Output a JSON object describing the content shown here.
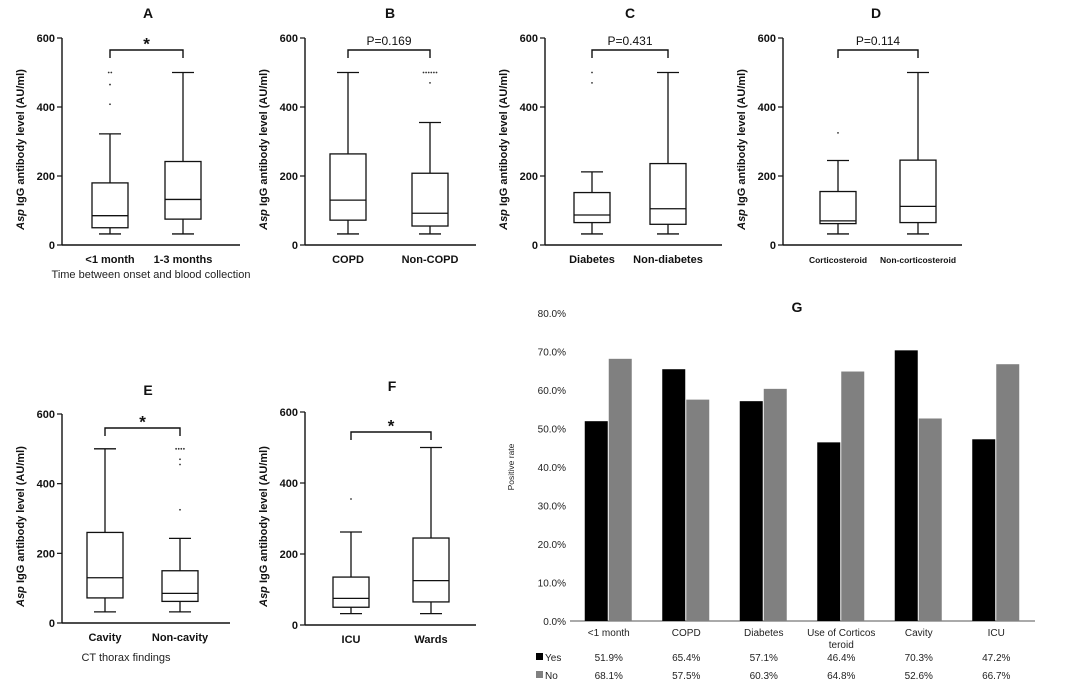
{
  "chart_data": [
    {
      "type": "boxplot",
      "panel": "A",
      "title": "A",
      "ylabel": "Asp IgG antibody level (AU/ml)",
      "xlabel": "Time between onset and blood collection",
      "ylim": [
        0,
        600
      ],
      "yticks": [
        "0",
        "200",
        "400",
        "600"
      ],
      "categories": [
        "<1 month",
        "1-3 months"
      ],
      "boxes": [
        {
          "name": "<1 month",
          "min": 32,
          "q1": 50,
          "median": 85,
          "q3": 180,
          "max": 322,
          "outliers": [
            408,
            465,
            500,
            500
          ]
        },
        {
          "name": "1-3 months",
          "min": 32,
          "q1": 75,
          "median": 132,
          "q3": 242,
          "max": 500,
          "outliers": []
        }
      ],
      "comparison": "*"
    },
    {
      "type": "boxplot",
      "panel": "B",
      "title": "B",
      "ylabel": "Asp IgG antibody level (AU/ml)",
      "xlabel": "",
      "ylim": [
        0,
        600
      ],
      "yticks": [
        "0",
        "200",
        "400",
        "600"
      ],
      "categories": [
        "COPD",
        "Non-COPD"
      ],
      "boxes": [
        {
          "name": "COPD",
          "min": 32,
          "q1": 72,
          "median": 130,
          "q3": 264,
          "max": 500,
          "outliers": []
        },
        {
          "name": "Non-COPD",
          "min": 32,
          "q1": 55,
          "median": 92,
          "q3": 208,
          "max": 355,
          "outliers": [
            470,
            500,
            500,
            500,
            500,
            500,
            500
          ]
        }
      ],
      "comparison": "P=0.169"
    },
    {
      "type": "boxplot",
      "panel": "C",
      "title": "C",
      "ylabel": "Asp IgG antibody level (AU/ml)",
      "xlabel": "",
      "ylim": [
        0,
        600
      ],
      "yticks": [
        "0",
        "200",
        "400",
        "600"
      ],
      "categories": [
        "Diabetes",
        "Non-diabetes"
      ],
      "boxes": [
        {
          "name": "Diabetes",
          "min": 32,
          "q1": 65,
          "median": 87,
          "q3": 152,
          "max": 212,
          "outliers": [
            470,
            500
          ]
        },
        {
          "name": "Non-diabetes",
          "min": 32,
          "q1": 60,
          "median": 105,
          "q3": 236,
          "max": 500,
          "outliers": []
        }
      ],
      "comparison": "P=0.431"
    },
    {
      "type": "boxplot",
      "panel": "D",
      "title": "D",
      "ylabel": "Asp IgG antibody level (AU/ml)",
      "xlabel": "",
      "ylim": [
        0,
        600
      ],
      "yticks": [
        "0",
        "200",
        "400",
        "600"
      ],
      "categories": [
        "Corticosteroid",
        "Non-corticosteroid"
      ],
      "boxes": [
        {
          "name": "Corticosteroid",
          "min": 32,
          "q1": 62,
          "median": 70,
          "q3": 155,
          "max": 245,
          "outliers": [
            325
          ]
        },
        {
          "name": "Non-corticosteroid",
          "min": 32,
          "q1": 65,
          "median": 112,
          "q3": 246,
          "max": 500,
          "outliers": []
        }
      ],
      "comparison": "P=0.114"
    },
    {
      "type": "boxplot",
      "panel": "E",
      "title": "E",
      "ylabel": "Asp IgG antibody level (AU/ml)",
      "xlabel": "CT thorax findings",
      "ylim": [
        0,
        600
      ],
      "yticks": [
        "0",
        "200",
        "400",
        "600"
      ],
      "categories": [
        "Cavity",
        "Non-cavity"
      ],
      "boxes": [
        {
          "name": "Cavity",
          "min": 32,
          "q1": 72,
          "median": 130,
          "q3": 260,
          "max": 500,
          "outliers": []
        },
        {
          "name": "Non-cavity",
          "min": 32,
          "q1": 62,
          "median": 85,
          "q3": 150,
          "max": 243,
          "outliers": [
            325,
            455,
            470,
            500,
            500,
            500,
            500
          ]
        }
      ],
      "comparison": "*"
    },
    {
      "type": "boxplot",
      "panel": "F",
      "title": "F",
      "ylabel": "Asp IgG antibody level (AU/ml)",
      "xlabel": "",
      "ylim": [
        0,
        600
      ],
      "yticks": [
        "0",
        "200",
        "400",
        "600"
      ],
      "categories": [
        "ICU",
        "Wards"
      ],
      "boxes": [
        {
          "name": "ICU",
          "min": 32,
          "q1": 50,
          "median": 75,
          "q3": 135,
          "max": 262,
          "outliers": [
            355
          ]
        },
        {
          "name": "Wards",
          "min": 32,
          "q1": 65,
          "median": 125,
          "q3": 245,
          "max": 500,
          "outliers": []
        }
      ],
      "comparison": "*"
    },
    {
      "type": "bar",
      "panel": "G",
      "title": "G",
      "ylabel": "Positive rate",
      "ylim": [
        0,
        80
      ],
      "yticks": [
        "0.0%",
        "10.0%",
        "20.0%",
        "30.0%",
        "40.0%",
        "50.0%",
        "60.0%",
        "70.0%",
        "80.0%"
      ],
      "categories": [
        "<1 month",
        "COPD",
        "Diabetes",
        "Use of Corticos teroid",
        "Cavity",
        "ICU"
      ],
      "category_lines": [
        [
          "<1 month"
        ],
        [
          "COPD"
        ],
        [
          "Diabetes"
        ],
        [
          "Use of Corticos",
          "teroid"
        ],
        [
          "Cavity"
        ],
        [
          "ICU"
        ]
      ],
      "series": [
        {
          "name": "Yes",
          "color": "#000000",
          "values": [
            51.9,
            65.4,
            57.1,
            46.4,
            70.3,
            47.2
          ],
          "labels": [
            "51.9%",
            "65.4%",
            "57.1%",
            "46.4%",
            "70.3%",
            "47.2%"
          ]
        },
        {
          "name": "No",
          "color": "#808080",
          "values": [
            68.1,
            57.5,
            60.3,
            64.8,
            52.6,
            66.7
          ],
          "labels": [
            "68.1%",
            "57.5%",
            "60.3%",
            "64.8%",
            "52.6%",
            "66.7%"
          ]
        }
      ],
      "legend": "data-table-below"
    }
  ]
}
